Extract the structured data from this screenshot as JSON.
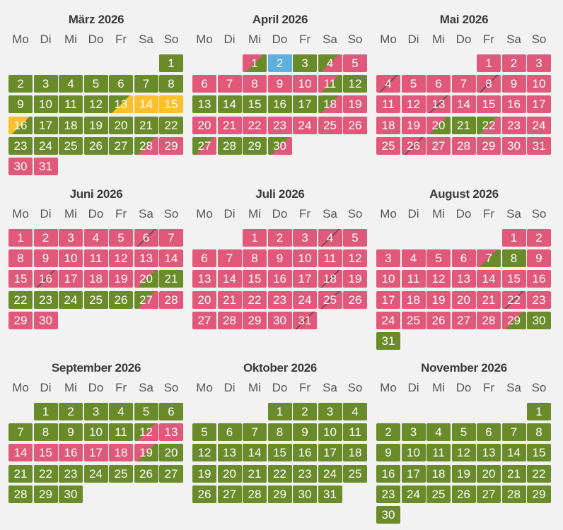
{
  "weekdays": [
    "Mo",
    "Di",
    "Mi",
    "Do",
    "Fr",
    "Sa",
    "So"
  ],
  "status_colors": {
    "free": "#6a8b2a",
    "booked": "#e0597a",
    "option": "#fcc02e",
    "today": "#5fafde"
  },
  "months": [
    {
      "title": "März 2026",
      "offset": 6,
      "days": [
        "g",
        "g",
        "g",
        "g",
        "g",
        "g",
        "g",
        "g",
        "g",
        "g",
        "g",
        "g",
        "gy",
        "y",
        "y",
        "yg",
        "g",
        "g",
        "g",
        "g",
        "g",
        "g",
        "g",
        "g",
        "g",
        "g",
        "g",
        "gr",
        "r",
        "r",
        "r"
      ]
    },
    {
      "title": "April 2026",
      "offset": 2,
      "days": [
        "rg",
        "b",
        "g",
        "gr",
        "r",
        "r",
        "r",
        "r",
        "r",
        "r",
        "rg",
        "g",
        "g",
        "g",
        "g",
        "g",
        "g",
        "gr",
        "r",
        "r",
        "r",
        "r",
        "r",
        "r",
        "r",
        "r",
        "gr",
        "g",
        "g",
        "gr"
      ]
    },
    {
      "title": "Mai 2026",
      "offset": 4,
      "days": [
        "r",
        "r",
        "r",
        "rs",
        "r",
        "r",
        "r",
        "rs",
        "r",
        "r",
        "r",
        "r",
        "rs",
        "r",
        "r",
        "r",
        "r",
        "r",
        "r",
        "rg",
        "g",
        "gr",
        "r",
        "r",
        "r",
        "rs",
        "r",
        "r",
        "r",
        "r",
        "r"
      ]
    },
    {
      "title": "Juni 2026",
      "offset": 0,
      "days": [
        "r",
        "r",
        "r",
        "r",
        "r",
        "rs",
        "r",
        "r",
        "r",
        "r",
        "r",
        "r",
        "r",
        "r",
        "r",
        "rs",
        "r",
        "r",
        "r",
        "rg",
        "g",
        "g",
        "g",
        "g",
        "g",
        "g",
        "gr",
        "r",
        "r",
        "r"
      ]
    },
    {
      "title": "Juli 2026",
      "offset": 2,
      "days": [
        "r",
        "r",
        "r",
        "rs",
        "r",
        "r",
        "r",
        "r",
        "r",
        "r",
        "r",
        "r",
        "r",
        "r",
        "r",
        "r",
        "r",
        "rs",
        "r",
        "r",
        "r",
        "r",
        "r",
        "r",
        "rs",
        "r",
        "r",
        "r",
        "r",
        "r",
        "rs"
      ]
    },
    {
      "title": "August 2026",
      "offset": 5,
      "days": [
        "r",
        "r",
        "r",
        "r",
        "r",
        "r",
        "rg",
        "g",
        "r",
        "r",
        "r",
        "r",
        "r",
        "r",
        "r",
        "r",
        "r",
        "r",
        "r",
        "r",
        "r",
        "rs",
        "r",
        "r",
        "r",
        "r",
        "r",
        "r",
        "rg",
        "g",
        "g"
      ]
    },
    {
      "title": "September 2026",
      "offset": 1,
      "days": [
        "g",
        "g",
        "g",
        "g",
        "g",
        "g",
        "g",
        "g",
        "g",
        "g",
        "g",
        "gr",
        "r",
        "r",
        "r",
        "r",
        "r",
        "r",
        "rg",
        "g",
        "g",
        "g",
        "g",
        "g",
        "g",
        "g",
        "g",
        "g",
        "g",
        "g"
      ]
    },
    {
      "title": "Oktober 2026",
      "offset": 3,
      "days": [
        "g",
        "g",
        "g",
        "g",
        "g",
        "g",
        "g",
        "g",
        "g",
        "g",
        "g",
        "g",
        "g",
        "g",
        "g",
        "g",
        "g",
        "g",
        "g",
        "g",
        "g",
        "g",
        "g",
        "g",
        "g",
        "g",
        "g",
        "g",
        "g",
        "g",
        "g"
      ]
    },
    {
      "title": "November 2026",
      "offset": 6,
      "days": [
        "g",
        "g",
        "g",
        "g",
        "g",
        "g",
        "g",
        "g",
        "g",
        "g",
        "g",
        "g",
        "g",
        "g",
        "g",
        "g",
        "g",
        "g",
        "g",
        "g",
        "g",
        "g",
        "g",
        "g",
        "g",
        "g",
        "g",
        "g",
        "g",
        "g"
      ]
    }
  ]
}
